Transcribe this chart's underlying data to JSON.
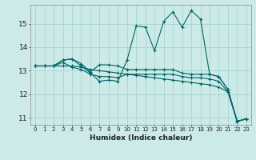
{
  "xlabel": "Humidex (Indice chaleur)",
  "bg_color": "#cceae8",
  "grid_color": "#aad4d0",
  "line_color": "#006666",
  "xlim": [
    -0.5,
    23.5
  ],
  "ylim": [
    10.7,
    15.8
  ],
  "yticks": [
    11,
    12,
    13,
    14,
    15
  ],
  "xticks": [
    0,
    1,
    2,
    3,
    4,
    5,
    6,
    7,
    8,
    9,
    10,
    11,
    12,
    13,
    14,
    15,
    16,
    17,
    18,
    19,
    20,
    21,
    22,
    23
  ],
  "series": [
    {
      "x": [
        0,
        1,
        2,
        3,
        4,
        5,
        6,
        7,
        8,
        9,
        10,
        11,
        12,
        13,
        14,
        15,
        16,
        17,
        18,
        19,
        20,
        21,
        22,
        23
      ],
      "y": [
        13.2,
        13.2,
        13.2,
        13.2,
        13.2,
        13.15,
        13.05,
        13.0,
        12.95,
        12.9,
        12.85,
        12.8,
        12.75,
        12.7,
        12.65,
        12.6,
        12.55,
        12.5,
        12.45,
        12.4,
        12.3,
        12.1,
        10.85,
        10.95
      ]
    },
    {
      "x": [
        0,
        1,
        2,
        3,
        4,
        5,
        6,
        7,
        8,
        9,
        10,
        11,
        12,
        13,
        14,
        15,
        16,
        17,
        18,
        19,
        20,
        21,
        22,
        23
      ],
      "y": [
        13.2,
        13.2,
        13.2,
        13.45,
        13.5,
        13.2,
        12.9,
        12.55,
        12.6,
        12.55,
        13.45,
        14.9,
        14.85,
        13.85,
        15.1,
        15.5,
        14.85,
        15.55,
        15.2,
        12.85,
        12.75,
        12.2,
        10.85,
        10.95
      ]
    },
    {
      "x": [
        0,
        1,
        2,
        3,
        4,
        5,
        6,
        7,
        8,
        9,
        10,
        11,
        12,
        13,
        14,
        15,
        16,
        17,
        18,
        19,
        20,
        21,
        22,
        23
      ],
      "y": [
        13.2,
        13.2,
        13.2,
        13.45,
        13.5,
        13.3,
        12.95,
        13.25,
        13.25,
        13.2,
        13.05,
        13.05,
        13.05,
        13.05,
        13.05,
        13.05,
        12.9,
        12.85,
        12.85,
        12.85,
        12.75,
        12.2,
        10.85,
        10.95
      ]
    },
    {
      "x": [
        0,
        1,
        2,
        3,
        4,
        5,
        6,
        7,
        8,
        9,
        10,
        11,
        12,
        13,
        14,
        15,
        16,
        17,
        18,
        19,
        20,
        21,
        22,
        23
      ],
      "y": [
        13.2,
        13.2,
        13.2,
        13.35,
        13.15,
        13.05,
        12.85,
        12.75,
        12.75,
        12.7,
        12.85,
        12.85,
        12.85,
        12.85,
        12.85,
        12.85,
        12.75,
        12.7,
        12.7,
        12.65,
        12.55,
        12.1,
        10.85,
        10.95
      ]
    }
  ]
}
